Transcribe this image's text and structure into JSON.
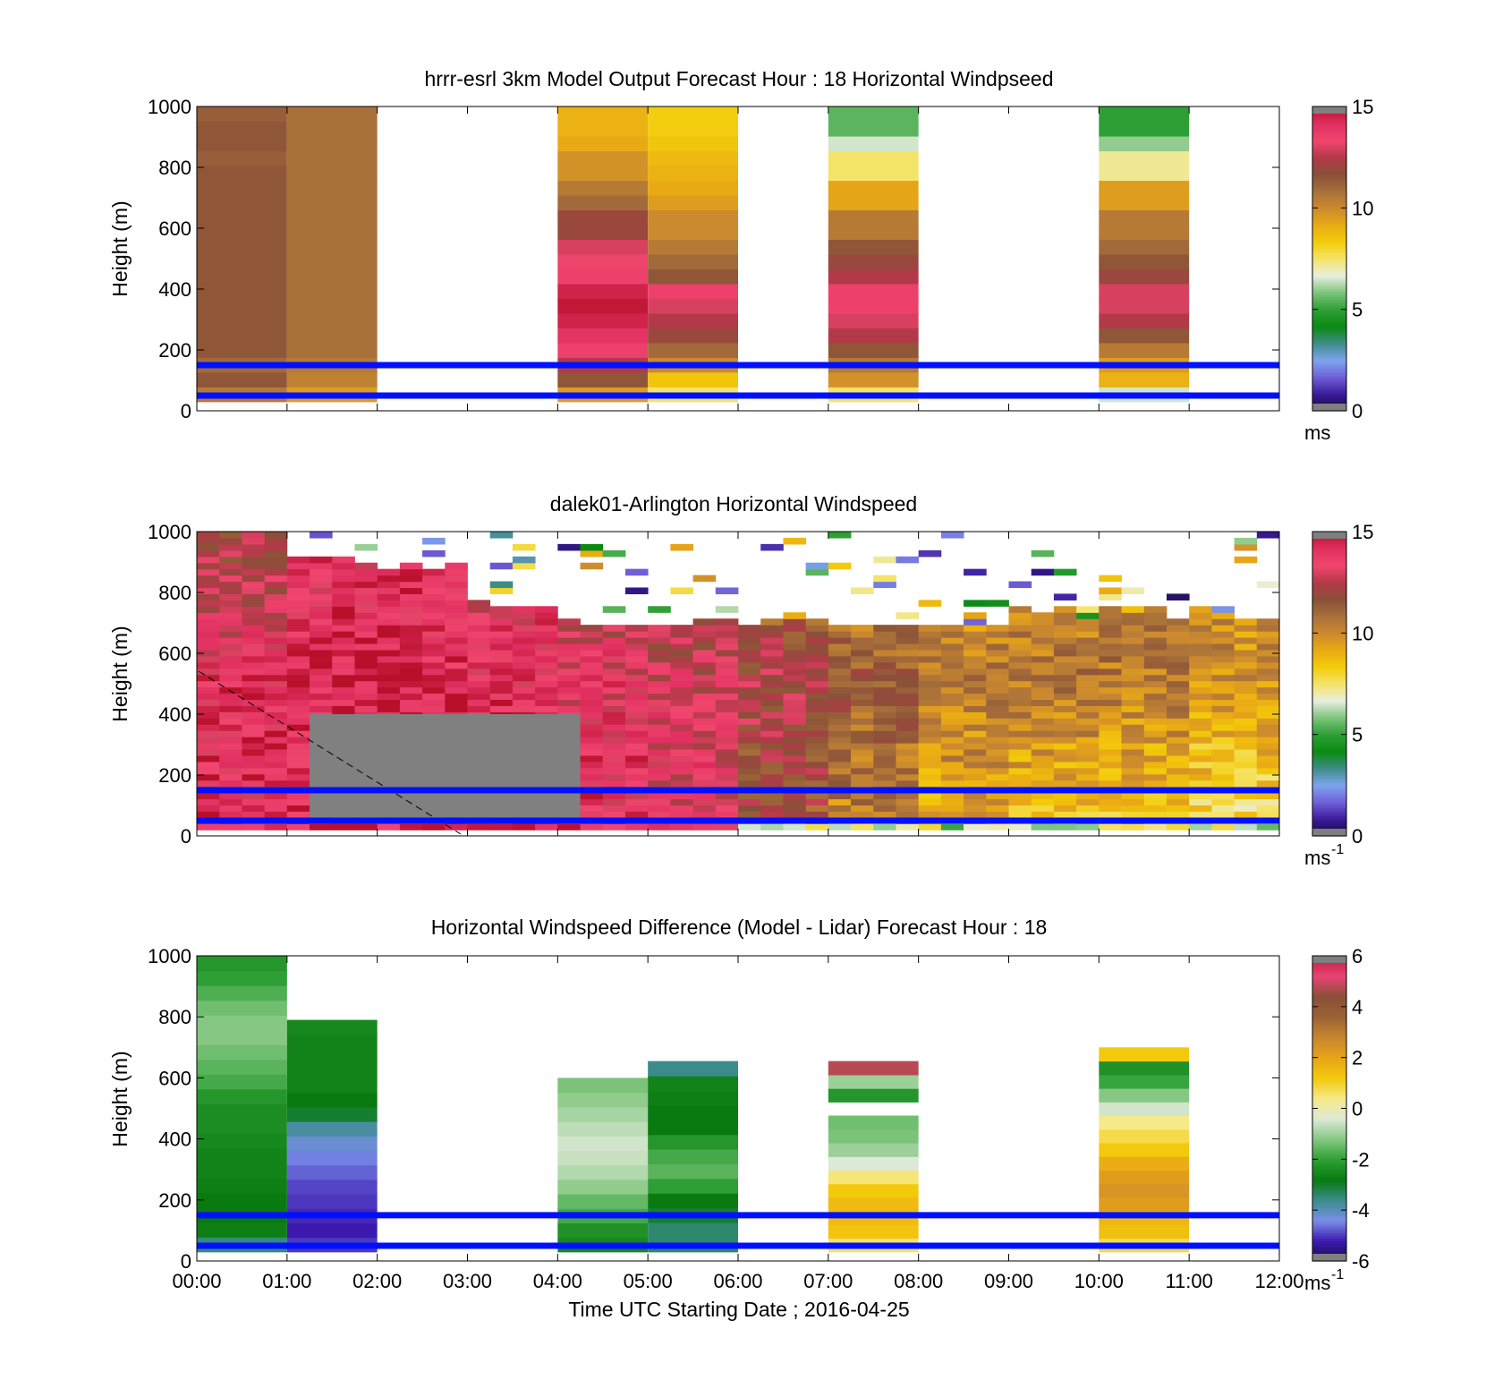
{
  "colors": {
    "speed_colormap": [
      "#14083a",
      "#3a1a9a",
      "#6f5fd8",
      "#7fa4ee",
      "#3e8d8a",
      "#0b8a12",
      "#2d9f35",
      "#7cc47a",
      "#e8eee0",
      "#f5e46a",
      "#f3cc0a",
      "#eaaa14",
      "#cc8a2e",
      "#a8703a",
      "#8a5038",
      "#b23a48",
      "#f0456e",
      "#e03060",
      "#b8102a"
    ],
    "diff_colormap": [
      "#1a0c4a",
      "#3c1ab0",
      "#7a8ee8",
      "#3a8c8c",
      "#087a10",
      "#2d9f35",
      "#86c883",
      "#dce9d6",
      "#f6ea88",
      "#f3c90c",
      "#e8a418",
      "#c8862e",
      "#9a6234",
      "#8a5038",
      "#e64470",
      "#c01e44"
    ],
    "reference_lines": "#0010ff",
    "missing_data": "#808080"
  },
  "chart_data": [
    {
      "type": "heatmap",
      "title": "hrrr-esrl 3km Model Output   Forecast Hour : 18 Horizontal Windpseed",
      "xlabel": "",
      "ylabel": "Height (m)",
      "xlim": [
        "00:00",
        "12:00"
      ],
      "ylim": [
        0,
        1000
      ],
      "yticks": [
        "0",
        "200",
        "400",
        "600",
        "800",
        "1000"
      ],
      "colorbar": {
        "min": 0,
        "max": 15,
        "ticks": [
          "0",
          "5",
          "10",
          "15"
        ],
        "unit": "ms"
      },
      "reference_heights_m": [
        50,
        150
      ],
      "grid": false,
      "columns": [
        {
          "start": "00:00",
          "end": "01:00",
          "top_m": 1000,
          "profile_ms": [
            10.5,
            11.5,
            11.0,
            11.5,
            11.5,
            11.5,
            11.5,
            11.5,
            11.5,
            11.5,
            11.5,
            11.5,
            11.5,
            11.5,
            11.5,
            11.5,
            11.3,
            11.5,
            11.5,
            11.3
          ]
        },
        {
          "start": "01:00",
          "end": "02:00",
          "top_m": 1000,
          "profile_ms": [
            9.5,
            10.3,
            10.5,
            10.8,
            10.8,
            10.8,
            10.8,
            10.8,
            10.8,
            10.8,
            10.8,
            10.8,
            10.8,
            10.8,
            10.8,
            10.8,
            10.8,
            10.8,
            10.8,
            10.8
          ]
        },
        {
          "start": "04:00",
          "end": "05:00",
          "top_m": 1000,
          "profile_ms": [
            9.5,
            11.5,
            12.5,
            13.5,
            14.0,
            14.5,
            14.8,
            14.5,
            13.5,
            13.3,
            13.0,
            12.0,
            12.0,
            11.0,
            10.5,
            9.8,
            9.8,
            9.2,
            9.0,
            9.0
          ]
        },
        {
          "start": "05:00",
          "end": "06:00",
          "top_m": 1000,
          "profile_ms": [
            7.5,
            8.5,
            10.0,
            11.0,
            12.0,
            12.5,
            13.0,
            13.5,
            11.5,
            11.0,
            10.5,
            10.0,
            10.0,
            9.5,
            9.2,
            9.0,
            8.8,
            8.5,
            8.3,
            8.3
          ]
        },
        {
          "start": "07:00",
          "end": "08:00",
          "top_m": 1000,
          "profile_ms": [
            7.5,
            9.8,
            10.5,
            11.5,
            12.5,
            13.0,
            13.5,
            13.5,
            12.5,
            12.0,
            11.5,
            10.5,
            10.5,
            9.3,
            9.3,
            7.5,
            7.5,
            6.5,
            5.5,
            5.5
          ]
        },
        {
          "start": "10:00",
          "end": "11:00",
          "top_m": 1000,
          "profile_ms": [
            6.5,
            9.0,
            9.5,
            10.5,
            11.5,
            12.5,
            13.0,
            13.0,
            12.0,
            11.5,
            11.0,
            10.5,
            10.5,
            9.5,
            9.5,
            7.2,
            7.2,
            6.0,
            5.0,
            5.0
          ]
        }
      ]
    },
    {
      "type": "heatmap",
      "title": "dalek01-Arlington  Horizontal Windspeed",
      "xlabel": "",
      "ylabel": "Height (m)",
      "xlim": [
        "00:00",
        "12:00"
      ],
      "ylim": [
        0,
        1000
      ],
      "yticks": [
        "0",
        "200",
        "400",
        "600",
        "800",
        "1000"
      ],
      "colorbar": {
        "min": 0,
        "max": 15,
        "ticks": [
          "0",
          "5",
          "10",
          "15"
        ],
        "unit": "ms",
        "unit_exponent": "-1"
      },
      "reference_heights_m": [
        50,
        150
      ],
      "missing_data_region": [
        {
          "start": "01:15",
          "end": "04:15",
          "bottom_m": 60,
          "top_m": 400
        }
      ],
      "grid": false,
      "time_step_minutes": 15,
      "mean_speed_by_hour_ms": [
        {
          "hour": "00:00",
          "low_ms": 14.0,
          "mid_ms": 14.0,
          "high_ms": 12.0,
          "top_m": 1000
        },
        {
          "hour": "01:00",
          "low_ms": 14.2,
          "mid_ms": 14.5,
          "high_ms": 13.5,
          "top_m": 900
        },
        {
          "hour": "02:00",
          "low_ms": 14.2,
          "mid_ms": 14.5,
          "high_ms": 13.8,
          "top_m": 880
        },
        {
          "hour": "03:00",
          "low_ms": 14.0,
          "mid_ms": 14.0,
          "high_ms": 13.0,
          "top_m": 760
        },
        {
          "hour": "04:00",
          "low_ms": 14.0,
          "mid_ms": 13.5,
          "high_ms": 12.0,
          "top_m": 700
        },
        {
          "hour": "05:00",
          "low_ms": 13.5,
          "mid_ms": 13.0,
          "high_ms": 11.5,
          "top_m": 690
        },
        {
          "hour": "06:00",
          "low_ms": 11.5,
          "mid_ms": 12.5,
          "high_ms": 10.0,
          "top_m": 690
        },
        {
          "hour": "07:00",
          "low_ms": 10.0,
          "mid_ms": 11.5,
          "high_ms": 9.5,
          "top_m": 690
        },
        {
          "hour": "08:00",
          "low_ms": 9.0,
          "mid_ms": 10.5,
          "high_ms": 9.5,
          "top_m": 690
        },
        {
          "hour": "09:00",
          "low_ms": 8.5,
          "mid_ms": 10.5,
          "high_ms": 9.5,
          "top_m": 720
        },
        {
          "hour": "10:00",
          "low_ms": 8.0,
          "mid_ms": 10.5,
          "high_ms": 10.0,
          "top_m": 730
        },
        {
          "hour": "11:00",
          "low_ms": 7.5,
          "mid_ms": 10.0,
          "high_ms": 9.5,
          "top_m": 720
        }
      ]
    },
    {
      "type": "heatmap",
      "title": "Horizontal Windspeed Difference (Model - Lidar) Forecast Hour : 18",
      "xlabel": "Time UTC  Starting Date ; 2016-04-25",
      "ylabel": "Height (m)",
      "xlim": [
        "00:00",
        "12:00"
      ],
      "xticks": [
        "00:00",
        "01:00",
        "02:00",
        "03:00",
        "04:00",
        "05:00",
        "06:00",
        "07:00",
        "08:00",
        "09:00",
        "10:00",
        "11:00",
        "12:00"
      ],
      "ylim": [
        0,
        1000
      ],
      "yticks": [
        "0",
        "200",
        "400",
        "600",
        "800",
        "1000"
      ],
      "colorbar": {
        "min": -6,
        "max": 6,
        "ticks": [
          "-6",
          "-4",
          "-2",
          "0",
          "2",
          "4",
          "6"
        ],
        "unit": "ms",
        "unit_exponent": "-1"
      },
      "reference_heights_m": [
        50,
        150
      ],
      "grid": false,
      "columns": [
        {
          "start": "00:00",
          "end": "01:00",
          "top_m": 1000,
          "profile_diff_ms": [
            -3.5,
            -2.7,
            -2.8,
            -2.8,
            -2.7,
            -2.6,
            -2.6,
            -2.5,
            -2.4,
            -2.4,
            -2.2,
            -1.8,
            -1.6,
            -1.4,
            -1.2,
            -1.2,
            -1.4,
            -1.7,
            -2.0,
            -2.2
          ]
        },
        {
          "start": "01:00",
          "end": "02:00",
          "top_m": 790,
          "profile_diff_ms": [
            -5.0,
            -5.2,
            -5.1,
            -5.0,
            -4.9,
            -4.7,
            -4.5,
            -4.2,
            -3.8,
            -3.0,
            -2.8,
            -2.6,
            -2.6,
            -2.6,
            -2.6,
            -2.5
          ]
        },
        {
          "start": "04:00",
          "end": "05:00",
          "top_m": 600,
          "profile_diff_ms": [
            -2.5,
            -2.3,
            -1.8,
            -1.5,
            -1.1,
            -0.8,
            -0.6,
            -0.5,
            -0.7,
            -0.9,
            -1.1,
            -1.3
          ]
        },
        {
          "start": "05:00",
          "end": "06:00",
          "top_m": 655,
          "profile_diff_ms": [
            -3.4,
            -3.4,
            -3.0,
            -2.8,
            -2.0,
            -1.6,
            -1.8,
            -2.2,
            -2.8,
            -2.8,
            -2.7,
            -2.6,
            -3.6
          ]
        },
        {
          "start": "07:00",
          "end": "08:00",
          "top_m": 655,
          "profile_diff_ms": [
            0.6,
            1.3,
            1.5,
            1.5,
            1.2,
            0.5,
            -0.4,
            -1.0,
            -1.3,
            -1.4,
            null,
            -2.2,
            -1.0,
            4.8
          ]
        },
        {
          "start": "10:00",
          "end": "11:00",
          "top_m": 700,
          "profile_diff_ms": [
            0.8,
            1.4,
            1.6,
            2.2,
            2.4,
            2.2,
            1.8,
            1.2,
            0.8,
            0.4,
            -0.5,
            -1.2,
            -1.9,
            -2.3,
            1.2
          ]
        }
      ]
    }
  ]
}
